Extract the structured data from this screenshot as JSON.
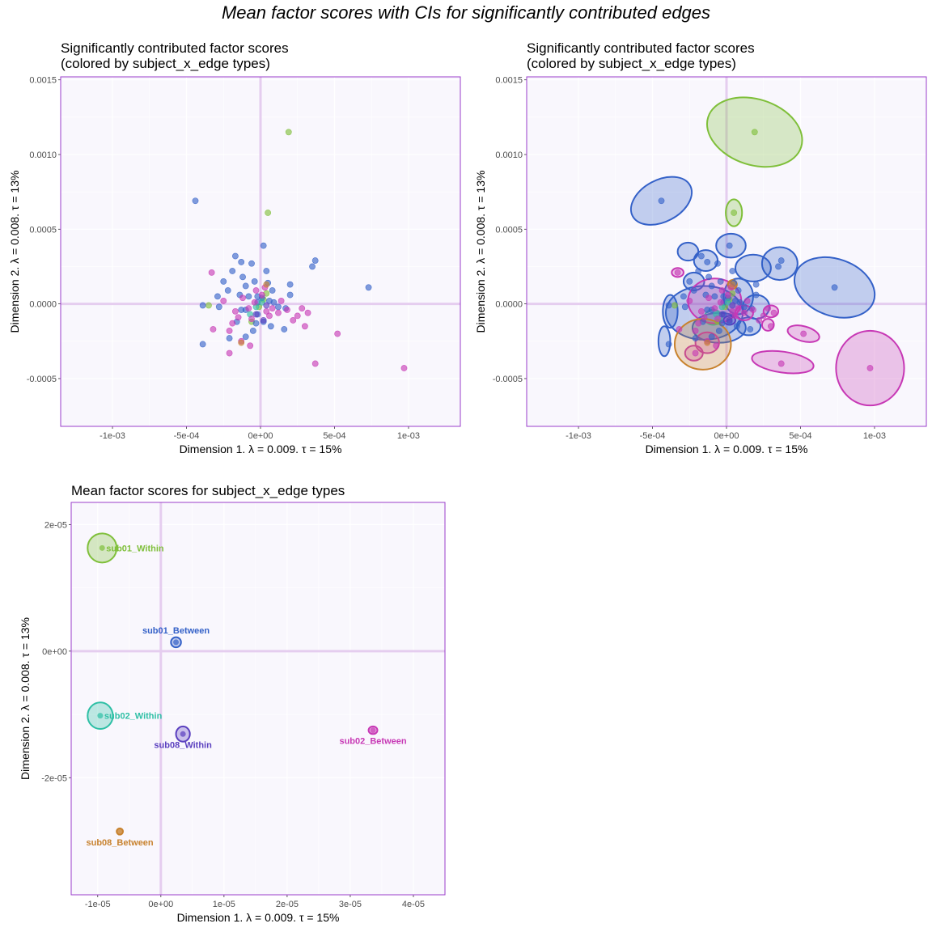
{
  "figure_title": "Mean factor scores with CIs for significantly contributed edges",
  "colors": {
    "panel_bg": "#F9F7FD",
    "border": "#9A3CCB",
    "grid": "#FFFFFF",
    "origin": "#E5CDEF",
    "sub01_Within": "#7FBF3A",
    "sub01_Between": "#3461C8",
    "sub02_Within": "#2EBFA5",
    "sub02_Between": "#C738B5",
    "sub08_Within": "#5A3FBF",
    "sub08_Between": "#C8822E"
  },
  "chart_data": [
    {
      "type": "scatter",
      "panel": "top-left",
      "title": "Significantly contributed factor scores\n(colored by subject_x_edge types)",
      "xlabel": "Dimension 1.   λ = 0.009.  τ = 15%",
      "ylabel": "Dimension 2.   λ = 0.008.  τ = 13%",
      "xlim": [
        -0.00135,
        0.00135
      ],
      "ylim": [
        -0.00082,
        0.00152
      ],
      "x_ticks": [
        -0.001,
        -0.0005,
        0,
        0.0005,
        0.001
      ],
      "x_tick_labels": [
        "-1e-03",
        "-5e-04",
        "0e+00",
        "5e-04",
        "1e-03"
      ],
      "y_ticks": [
        -0.0005,
        0,
        0.0005,
        0.001,
        0.0015
      ],
      "y_tick_labels": [
        "-0.0005",
        "0.0000",
        "0.0005",
        "0.0010",
        "0.0015"
      ],
      "grid": true,
      "series": [
        {
          "name": "sub01_Within",
          "color": "#7FBF3A",
          "points": [
            [
              0.00019,
              0.00115
            ],
            [
              5e-05,
              0.00061
            ],
            [
              -0.00035,
              -1e-05
            ],
            [
              -1e-05,
              -2e-05
            ],
            [
              2e-05,
              3e-05
            ],
            [
              -6e-05,
              -0.00012
            ],
            [
              4e-05,
              7e-05
            ]
          ]
        },
        {
          "name": "sub01_Between",
          "color": "#3461C8",
          "points": [
            [
              -0.00044,
              0.00069
            ],
            [
              0.00073,
              0.00011
            ],
            [
              0.00037,
              0.00029
            ],
            [
              0.00035,
              0.00025
            ],
            [
              0.0002,
              0.00013
            ],
            [
              2e-05,
              0.00039
            ],
            [
              -0.00017,
              0.00032
            ],
            [
              -6e-05,
              0.00027
            ],
            [
              4e-05,
              0.00022
            ],
            [
              -4e-05,
              0.00015
            ],
            [
              5e-05,
              0.00014
            ],
            [
              -0.0001,
              0.00012
            ],
            [
              -0.00012,
              0.00018
            ],
            [
              -0.00019,
              0.00022
            ],
            [
              -0.00013,
              0.00028
            ],
            [
              -0.00022,
              9e-05
            ],
            [
              -0.00025,
              0.00015
            ],
            [
              -0.0001,
              -4e-05
            ],
            [
              -2e-05,
              -7e-05
            ],
            [
              2e-05,
              -0.00012
            ],
            [
              7e-05,
              -0.00015
            ],
            [
              -5e-05,
              -0.00018
            ],
            [
              -0.00016,
              -0.00012
            ],
            [
              -0.00021,
              -0.00023
            ],
            [
              -0.0001,
              -0.00022
            ],
            [
              0.00016,
              -0.00017
            ],
            [
              0.00017,
              -3e-05
            ],
            [
              0.0002,
              6e-05
            ],
            [
              6e-05,
              2e-05
            ],
            [
              -2e-05,
              5e-05
            ],
            [
              0.00012,
              -2e-05
            ],
            [
              -8e-05,
              5e-05
            ],
            [
              -0.00013,
              -4e-05
            ],
            [
              -0.00028,
              -2e-05
            ],
            [
              -0.00039,
              -0.00027
            ],
            [
              -0.00039,
              -1e-05
            ],
            [
              -0.00029,
              5e-05
            ],
            [
              -3e-05,
              -0.00013
            ],
            [
              9e-05,
              1e-05
            ],
            [
              -0.00014,
              6e-05
            ],
            [
              -2e-05,
              1e-05
            ],
            [
              1e-05,
              4e-05
            ],
            [
              8e-05,
              9e-05
            ]
          ]
        },
        {
          "name": "sub02_Within",
          "color": "#2EBFA5",
          "points": [
            [
              -7e-05,
              -7e-05
            ],
            [
              1e-05,
              1e-05
            ],
            [
              -3e-05,
              -2e-05
            ]
          ]
        },
        {
          "name": "sub02_Between",
          "color": "#C738B5",
          "points": [
            [
              0.00097,
              -0.00043
            ],
            [
              0.00052,
              -0.0002
            ],
            [
              0.00037,
              -0.0004
            ],
            [
              0.00032,
              -6e-05
            ],
            [
              0.00028,
              -3e-05
            ],
            [
              0.0003,
              -0.00015
            ],
            [
              0.00025,
              -8e-05
            ],
            [
              0.00018,
              -4e-05
            ],
            [
              0.00022,
              -0.00011
            ],
            [
              -0.00017,
              -5e-05
            ],
            [
              -0.00021,
              -0.00018
            ],
            [
              -0.00013,
              -0.00025
            ],
            [
              -7e-05,
              -0.00028
            ],
            [
              -0.00021,
              -0.00033
            ],
            [
              -0.00032,
              -0.00017
            ],
            [
              -0.00033,
              0.00021
            ],
            [
              -0.00025,
              2e-05
            ],
            [
              -0.00012,
              4e-05
            ],
            [
              -8e-05,
              -3e-05
            ],
            [
              -4e-05,
              1e-05
            ],
            [
              1e-05,
              6e-05
            ],
            [
              4e-05,
              -5e-05
            ],
            [
              8e-05,
              -3e-05
            ],
            [
              0.00012,
              -6e-05
            ],
            [
              0.00014,
              2e-05
            ],
            [
              -0.00015,
              -9e-05
            ],
            [
              -0.00019,
              -0.00013
            ],
            [
              -3e-05,
              9e-05
            ],
            [
              3e-05,
              0.00011
            ],
            [
              -6e-05,
              -0.0001
            ],
            [
              6e-05,
              -8e-05
            ]
          ]
        },
        {
          "name": "sub08_Within",
          "color": "#5A3FBF",
          "points": [
            [
              2e-05,
              -0.00011
            ],
            [
              -3e-05,
              -7e-05
            ],
            [
              4e-05,
              -1e-05
            ]
          ]
        },
        {
          "name": "sub08_Between",
          "color": "#C8822E",
          "points": [
            [
              -0.00013,
              -0.00026
            ],
            [
              4e-05,
              0.00013
            ]
          ]
        }
      ]
    },
    {
      "type": "scatter",
      "panel": "top-right",
      "title": "Significantly contributed factor scores\n(colored by subject_x_edge types)",
      "xlabel": "Dimension 1.   λ = 0.009.  τ = 15%",
      "ylabel": "Dimension 2.   λ = 0.008.  τ = 13%",
      "xlim": [
        -0.00135,
        0.00135
      ],
      "ylim": [
        -0.00082,
        0.00152
      ],
      "x_ticks": [
        -0.001,
        -0.0005,
        0,
        0.0005,
        0.001
      ],
      "x_tick_labels": [
        "-1e-03",
        "-5e-04",
        "0e+00",
        "5e-04",
        "1e-03"
      ],
      "y_ticks": [
        -0.0005,
        0,
        0.0005,
        0.001,
        0.0015
      ],
      "y_tick_labels": [
        "-0.0005",
        "0.0000",
        "0.0005",
        "0.0010",
        "0.0015"
      ],
      "grid": true,
      "confidence_ellipses": [
        {
          "group": "sub01_Within",
          "cx": 0.00019,
          "cy": 0.00115,
          "rx": 0.00033,
          "ry": 0.00022,
          "angle": 18
        },
        {
          "group": "sub01_Within",
          "cx": 5e-05,
          "cy": 0.00061,
          "rx": 5.5e-05,
          "ry": 9e-05,
          "angle": 0
        },
        {
          "group": "sub01_Between",
          "cx": -0.00044,
          "cy": 0.00069,
          "rx": 0.00022,
          "ry": 0.00014,
          "angle": -28
        },
        {
          "group": "sub01_Between",
          "cx": 0.00073,
          "cy": 0.00011,
          "rx": 0.00028,
          "ry": 0.00019,
          "angle": 20
        },
        {
          "group": "sub01_Between",
          "cx": 0.00036,
          "cy": 0.00027,
          "rx": 0.00012,
          "ry": 0.00011,
          "angle": 0
        },
        {
          "group": "sub01_Between",
          "cx": 3e-05,
          "cy": 0.00039,
          "rx": 0.0001,
          "ry": 8e-05,
          "angle": 0
        },
        {
          "group": "sub01_Between",
          "cx": -0.00026,
          "cy": 0.00035,
          "rx": 7e-05,
          "ry": 6e-05,
          "angle": 0
        },
        {
          "group": "sub01_Between",
          "cx": -0.00014,
          "cy": 0.00029,
          "rx": 8e-05,
          "ry": 7e-05,
          "angle": 0
        },
        {
          "group": "sub01_Between",
          "cx": 0.00018,
          "cy": 0.00024,
          "rx": 0.00012,
          "ry": 9e-05,
          "angle": 0
        },
        {
          "group": "sub01_Between",
          "cx": -0.00038,
          "cy": -5e-05,
          "rx": 5e-05,
          "ry": 0.00011,
          "angle": 0
        },
        {
          "group": "sub01_Between",
          "cx": -0.00042,
          "cy": -0.00025,
          "rx": 4e-05,
          "ry": 0.0001,
          "angle": 0
        },
        {
          "group": "sub01_Between",
          "cx": -0.00015,
          "cy": -6e-05,
          "rx": 0.00026,
          "ry": 0.00018,
          "angle": 0
        },
        {
          "group": "sub01_Between",
          "cx": 8e-05,
          "cy": 5e-05,
          "rx": 0.0001,
          "ry": 0.00012,
          "angle": 0
        },
        {
          "group": "sub01_Between",
          "cx": 0.0002,
          "cy": -2e-05,
          "rx": 9e-05,
          "ry": 8e-05,
          "angle": 0
        },
        {
          "group": "sub01_Between",
          "cx": -5e-05,
          "cy": -0.00016,
          "rx": 0.00018,
          "ry": 0.0001,
          "angle": 0
        },
        {
          "group": "sub01_Between",
          "cx": 0.00015,
          "cy": -0.00015,
          "rx": 8e-05,
          "ry": 6e-05,
          "angle": 0
        },
        {
          "group": "sub01_Between",
          "cx": -0.00022,
          "cy": 0.00015,
          "rx": 7e-05,
          "ry": 6e-05,
          "angle": 0
        },
        {
          "group": "sub02_Within",
          "cx": -9e-05,
          "cy": -9e-05,
          "rx": 6e-05,
          "ry": 5e-05,
          "angle": 0
        },
        {
          "group": "sub02_Between",
          "cx": 0.00097,
          "cy": -0.00043,
          "rx": 0.00023,
          "ry": 0.00025,
          "angle": 0
        },
        {
          "group": "sub02_Between",
          "cx": 0.00038,
          "cy": -0.00039,
          "rx": 0.00021,
          "ry": 7e-05,
          "angle": 8
        },
        {
          "group": "sub02_Between",
          "cx": 0.00052,
          "cy": -0.0002,
          "rx": 0.00011,
          "ry": 5e-05,
          "angle": 15
        },
        {
          "group": "sub02_Between",
          "cx": 0.0003,
          "cy": -5e-05,
          "rx": 5e-05,
          "ry": 4e-05,
          "angle": 0
        },
        {
          "group": "sub02_Between",
          "cx": 0.00028,
          "cy": -0.00014,
          "rx": 4e-05,
          "ry": 4e-05,
          "angle": 0
        },
        {
          "group": "sub02_Between",
          "cx": -8e-05,
          "cy": 2e-05,
          "rx": 0.00018,
          "ry": 0.00015,
          "angle": 0
        },
        {
          "group": "sub02_Between",
          "cx": -0.00013,
          "cy": -0.00026,
          "rx": 8e-05,
          "ry": 7e-05,
          "angle": 0
        },
        {
          "group": "sub02_Between",
          "cx": -0.00022,
          "cy": -0.00033,
          "rx": 6e-05,
          "ry": 5e-05,
          "angle": 0
        },
        {
          "group": "sub02_Between",
          "cx": -0.00033,
          "cy": 0.00021,
          "rx": 4e-05,
          "ry": 3e-05,
          "angle": 0
        },
        {
          "group": "sub02_Between",
          "cx": 0.00012,
          "cy": -6e-05,
          "rx": 6e-05,
          "ry": 5e-05,
          "angle": 0
        },
        {
          "group": "sub08_Within",
          "cx": 2e-05,
          "cy": -0.00011,
          "rx": 4e-05,
          "ry": 3e-05,
          "angle": 0
        },
        {
          "group": "sub08_Between",
          "cx": -0.00016,
          "cy": -0.00027,
          "rx": 0.00019,
          "ry": 0.00017,
          "angle": 0
        },
        {
          "group": "sub08_Between",
          "cx": 4e-05,
          "cy": 0.00013,
          "rx": 3e-05,
          "ry": 3e-05,
          "angle": 0
        }
      ],
      "points_from_panel": "top-left"
    },
    {
      "type": "scatter",
      "panel": "bottom-left",
      "title": "Mean factor scores for subject_x_edge types",
      "xlabel": "Dimension 1.   λ = 0.009.  τ = 15%",
      "ylabel": "Dimension 2.   λ = 0.008.  τ = 13%",
      "xlim": [
        -1.42e-05,
        4.5e-05
      ],
      "ylim": [
        -3.85e-05,
        2.35e-05
      ],
      "x_ticks": [
        -1e-05,
        0,
        1e-05,
        2e-05,
        3e-05,
        4e-05
      ],
      "x_tick_labels": [
        "-1e-05",
        "0e+00",
        "1e-05",
        "2e-05",
        "3e-05",
        "4e-05"
      ],
      "y_ticks": [
        -2e-05,
        0,
        2e-05
      ],
      "y_tick_labels": [
        "-2e-05",
        "0e+00",
        "2e-05"
      ],
      "grid": true,
      "groups": [
        {
          "name": "sub01_Within",
          "label": "sub01_Within",
          "color": "#7FBF3A",
          "x": -9.3e-06,
          "y": 1.63e-05,
          "rx": 2.3e-06,
          "ry": 2.3e-06,
          "label_pos": "right"
        },
        {
          "name": "sub01_Between",
          "label": "sub01_Between",
          "color": "#3461C8",
          "x": 2.4e-06,
          "y": 1.4e-06,
          "rx": 8e-07,
          "ry": 8e-07,
          "label_pos": "above"
        },
        {
          "name": "sub02_Within",
          "label": "sub02_Within",
          "color": "#2EBFA5",
          "x": -9.6e-06,
          "y": -1.02e-05,
          "rx": 2e-06,
          "ry": 2.1e-06,
          "label_pos": "right"
        },
        {
          "name": "sub08_Within",
          "label": "sub08_Within",
          "color": "#5A3FBF",
          "x": 3.5e-06,
          "y": -1.31e-05,
          "rx": 1.1e-06,
          "ry": 1.2e-06,
          "label_pos": "below"
        },
        {
          "name": "sub02_Between",
          "label": "sub02_Between",
          "color": "#C738B5",
          "x": 3.36e-05,
          "y": -1.25e-05,
          "rx": 7e-07,
          "ry": 6e-07,
          "label_pos": "below"
        },
        {
          "name": "sub08_Between",
          "label": "sub08_Between",
          "color": "#C8822E",
          "x": -6.5e-06,
          "y": -2.85e-05,
          "rx": 5e-07,
          "ry": 5e-07,
          "label_pos": "below"
        }
      ]
    }
  ]
}
